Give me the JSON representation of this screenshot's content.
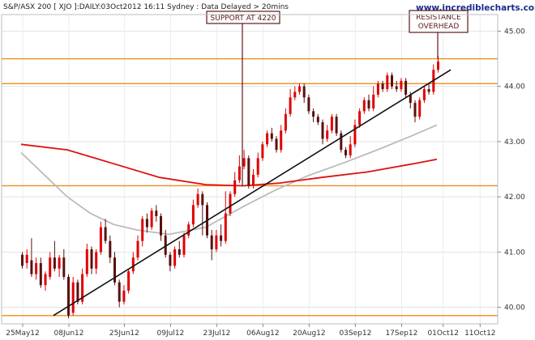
{
  "header": {
    "title": "S&P/ASX 200 [ XJO ]:DAILY:03Oct2012 16:11 Sydney : Data Delayed > 20mins",
    "brand": "www.incrediblecharts.com"
  },
  "colors": {
    "up_candle": "#e00000",
    "down_candle": "#5a1010",
    "ma_red": "#dd1111",
    "ma_grey": "#bbbbbb",
    "levels": "#f08a1c",
    "trendline": "#111111",
    "annotation_box": "#5a1a1a"
  },
  "chart_data": {
    "type": "candlestick",
    "x_ticks": [
      "25May12",
      "08Jun12",
      "25Jun12",
      "09Jul12",
      "23Jul12",
      "06Aug12",
      "20Aug12",
      "03Sep12",
      "17Sep12",
      "01Oct12",
      "11Oct12"
    ],
    "y_ticks": [
      "40.00",
      "41.00",
      "42.00",
      "43.00",
      "44.00",
      "45.00"
    ],
    "ylim": [
      39.7,
      45.3
    ],
    "horizontal_levels": [
      39.85,
      42.2,
      44.05,
      44.5
    ],
    "trendline": {
      "from": [
        7,
        39.85
      ],
      "to": [
        93,
        44.3
      ]
    },
    "annotations": [
      {
        "text": "SUPPORT AT 4220"
      },
      {
        "text_lines": [
          "RESISTANCE",
          "OVERHEAD"
        ]
      }
    ],
    "ma_long": [
      [
        0,
        42.95
      ],
      [
        10,
        42.85
      ],
      [
        20,
        42.6
      ],
      [
        30,
        42.35
      ],
      [
        40,
        42.22
      ],
      [
        48,
        42.2
      ],
      [
        56,
        42.25
      ],
      [
        65,
        42.35
      ],
      [
        75,
        42.45
      ],
      [
        85,
        42.6
      ],
      [
        90,
        42.68
      ]
    ],
    "ma_short": [
      [
        0,
        42.8
      ],
      [
        5,
        42.4
      ],
      [
        10,
        42.0
      ],
      [
        15,
        41.7
      ],
      [
        20,
        41.5
      ],
      [
        25,
        41.4
      ],
      [
        32,
        41.32
      ],
      [
        40,
        41.45
      ],
      [
        48,
        41.82
      ],
      [
        55,
        42.12
      ],
      [
        62,
        42.38
      ],
      [
        70,
        42.62
      ],
      [
        78,
        42.88
      ],
      [
        85,
        43.12
      ],
      [
        90,
        43.3
      ]
    ],
    "candles": [
      [
        40.95,
        40.75,
        41.0,
        40.7
      ],
      [
        40.8,
        40.95,
        41.05,
        40.7
      ],
      [
        40.85,
        40.6,
        41.25,
        40.55
      ],
      [
        40.6,
        40.8,
        40.9,
        40.5
      ],
      [
        40.8,
        40.4,
        40.9,
        40.35
      ],
      [
        40.4,
        40.6,
        40.65,
        40.3
      ],
      [
        40.55,
        40.9,
        41.0,
        40.5
      ],
      [
        40.9,
        40.7,
        41.2,
        40.65
      ],
      [
        40.7,
        40.9,
        40.95,
        40.55
      ],
      [
        40.9,
        40.55,
        41.05,
        40.5
      ],
      [
        40.55,
        39.85,
        40.6,
        39.8
      ],
      [
        39.9,
        40.45,
        40.55,
        39.85
      ],
      [
        40.45,
        40.1,
        40.5,
        40.05
      ],
      [
        40.1,
        40.6,
        40.7,
        40.05
      ],
      [
        40.6,
        41.05,
        41.15,
        40.55
      ],
      [
        41.05,
        40.7,
        41.1,
        40.6
      ],
      [
        40.7,
        41.0,
        41.05,
        40.6
      ],
      [
        41.0,
        41.45,
        41.55,
        40.95
      ],
      [
        41.45,
        41.2,
        41.6,
        41.15
      ],
      [
        41.2,
        40.9,
        41.3,
        40.8
      ],
      [
        40.9,
        40.45,
        41.0,
        40.4
      ],
      [
        40.45,
        40.1,
        40.5,
        40.0
      ],
      [
        40.1,
        40.3,
        40.4,
        40.05
      ],
      [
        40.3,
        40.65,
        40.7,
        40.25
      ],
      [
        40.65,
        40.9,
        41.0,
        40.6
      ],
      [
        40.9,
        41.2,
        41.3,
        40.85
      ],
      [
        41.2,
        41.6,
        41.65,
        41.1
      ],
      [
        41.6,
        41.45,
        41.7,
        41.35
      ],
      [
        41.45,
        41.75,
        41.8,
        41.4
      ],
      [
        41.75,
        41.65,
        41.85,
        41.55
      ],
      [
        41.65,
        41.3,
        41.7,
        41.2
      ],
      [
        41.3,
        40.95,
        41.4,
        40.9
      ],
      [
        40.95,
        40.75,
        41.0,
        40.65
      ],
      [
        40.75,
        41.05,
        41.1,
        40.7
      ],
      [
        41.05,
        40.95,
        41.2,
        40.9
      ],
      [
        40.95,
        41.3,
        41.35,
        40.9
      ],
      [
        41.3,
        41.5,
        41.55,
        41.25
      ],
      [
        41.5,
        41.85,
        41.95,
        41.45
      ],
      [
        41.85,
        42.05,
        42.15,
        41.8
      ],
      [
        42.05,
        41.85,
        42.1,
        41.3
      ],
      [
        41.85,
        41.3,
        41.9,
        41.25
      ],
      [
        41.3,
        41.05,
        41.4,
        40.85
      ],
      [
        41.05,
        41.3,
        41.4,
        41.0
      ],
      [
        41.3,
        41.2,
        41.5,
        41.1
      ],
      [
        41.2,
        41.7,
        42.1,
        41.15
      ],
      [
        41.7,
        42.05,
        42.1,
        41.65
      ],
      [
        42.05,
        42.3,
        42.45,
        42.0
      ],
      [
        42.3,
        42.55,
        42.75,
        42.25
      ],
      [
        42.55,
        42.7,
        42.85,
        42.5
      ],
      [
        42.7,
        42.2,
        42.75,
        42.15
      ],
      [
        42.2,
        42.4,
        42.5,
        42.15
      ],
      [
        42.4,
        42.7,
        42.8,
        42.35
      ],
      [
        42.7,
        42.95,
        43.0,
        42.65
      ],
      [
        42.95,
        43.15,
        43.2,
        42.9
      ],
      [
        43.15,
        43.05,
        43.25,
        43.0
      ],
      [
        43.05,
        42.85,
        43.1,
        42.8
      ],
      [
        42.85,
        43.2,
        43.3,
        42.8
      ],
      [
        43.2,
        43.5,
        43.6,
        43.15
      ],
      [
        43.5,
        43.8,
        43.95,
        43.45
      ],
      [
        43.8,
        43.9,
        44.0,
        43.75
      ],
      [
        43.9,
        44.0,
        44.05,
        43.85
      ],
      [
        44.0,
        43.8,
        44.05,
        43.7
      ],
      [
        43.8,
        43.55,
        43.85,
        43.5
      ],
      [
        43.55,
        43.45,
        43.6,
        43.35
      ],
      [
        43.45,
        43.35,
        43.5,
        43.3
      ],
      [
        43.35,
        43.05,
        43.4,
        42.95
      ],
      [
        43.05,
        43.2,
        43.3,
        43.0
      ],
      [
        43.2,
        43.45,
        43.5,
        43.15
      ],
      [
        43.45,
        43.15,
        43.5,
        43.1
      ],
      [
        43.15,
        42.85,
        43.2,
        42.8
      ],
      [
        42.85,
        42.75,
        42.9,
        42.7
      ],
      [
        42.75,
        42.95,
        43.1,
        42.7
      ],
      [
        42.95,
        43.3,
        43.4,
        42.9
      ],
      [
        43.3,
        43.55,
        43.6,
        43.25
      ],
      [
        43.55,
        43.75,
        43.8,
        43.5
      ],
      [
        43.75,
        43.6,
        43.85,
        43.55
      ],
      [
        43.6,
        43.85,
        44.0,
        43.55
      ],
      [
        43.85,
        44.05,
        44.1,
        43.8
      ],
      [
        44.05,
        43.95,
        44.1,
        43.9
      ],
      [
        43.95,
        44.2,
        44.25,
        43.9
      ],
      [
        44.2,
        44.0,
        44.25,
        43.95
      ],
      [
        44.0,
        43.95,
        44.1,
        43.9
      ],
      [
        43.95,
        44.1,
        44.15,
        43.9
      ],
      [
        44.1,
        43.85,
        44.15,
        43.8
      ],
      [
        43.85,
        43.7,
        43.9,
        43.6
      ],
      [
        43.7,
        43.45,
        43.75,
        43.35
      ],
      [
        43.45,
        43.75,
        43.8,
        43.4
      ],
      [
        43.75,
        43.95,
        44.0,
        43.7
      ],
      [
        43.95,
        43.9,
        44.05,
        43.85
      ],
      [
        43.9,
        44.3,
        44.4,
        43.85
      ],
      [
        44.3,
        44.45,
        44.55,
        44.25
      ]
    ]
  }
}
